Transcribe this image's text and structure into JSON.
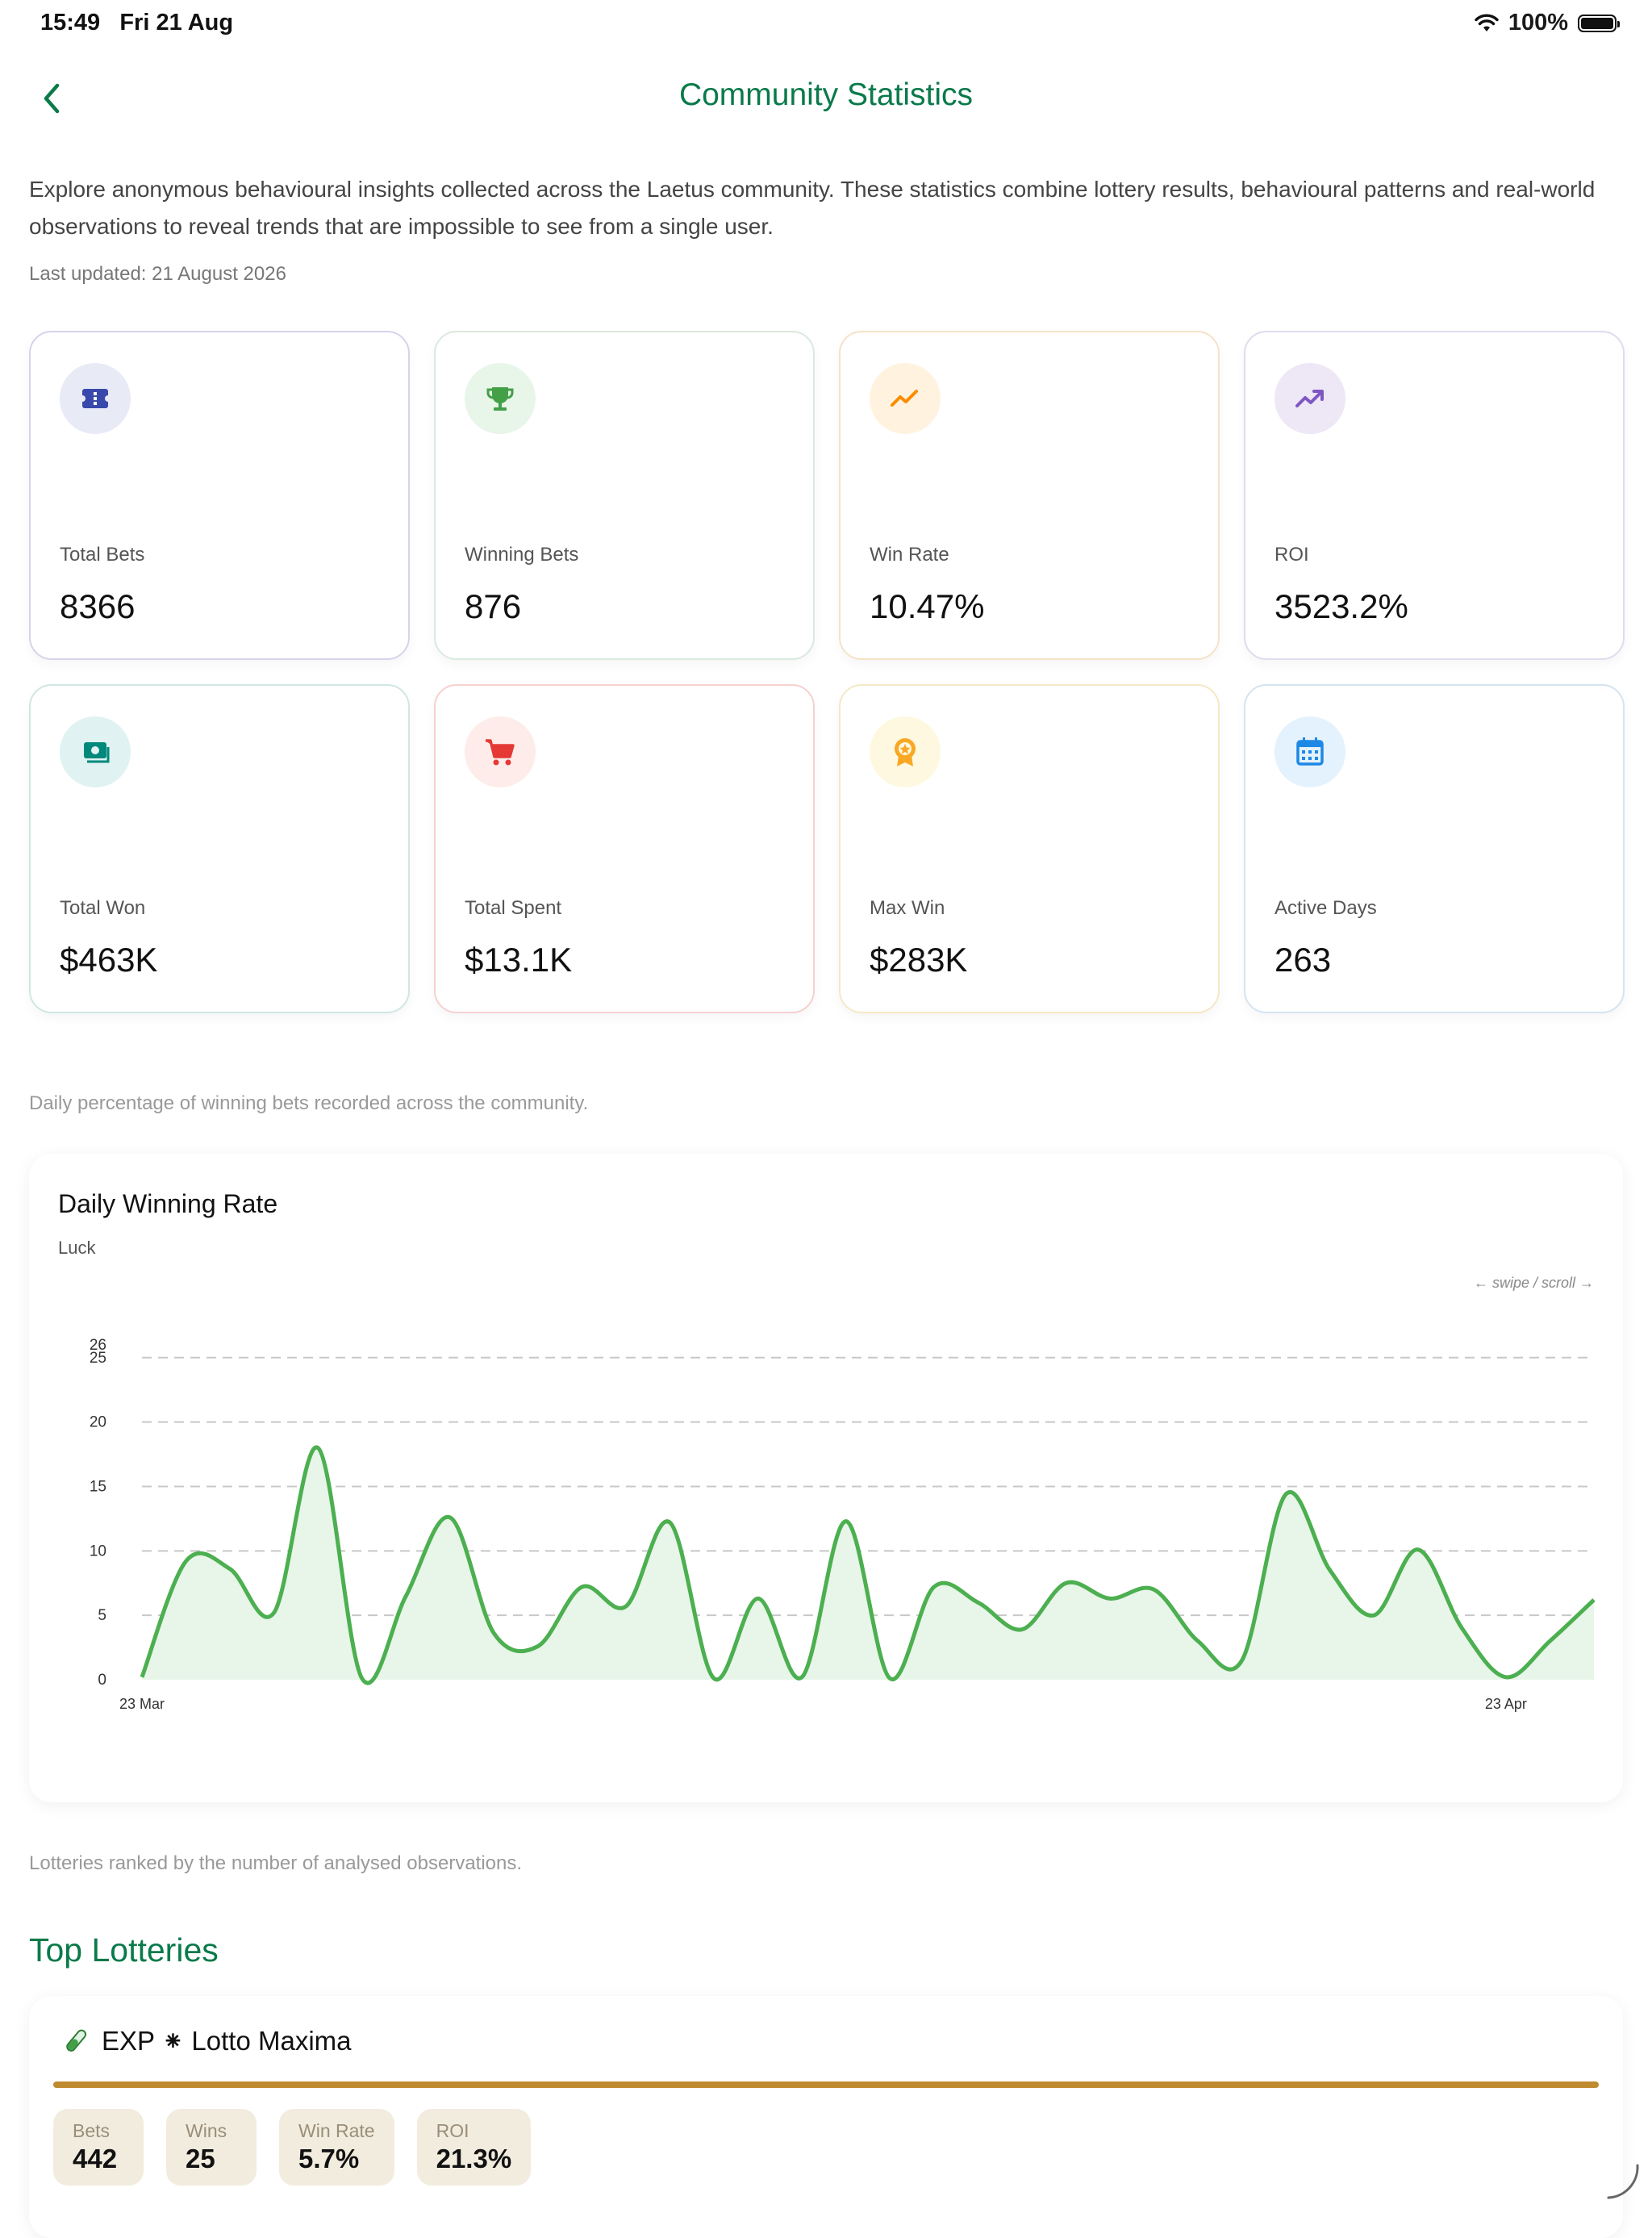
{
  "status": {
    "time": "15:49",
    "date": "Fri 21 Aug",
    "battery": "100%"
  },
  "nav": {
    "title": "Community Statistics"
  },
  "intro": {
    "text": "Explore anonymous behavioural insights collected across the Laetus community. These statistics combine lottery results, behavioural patterns and real-world observations to reveal trends that are impossible to see from a single user.",
    "updated": "Last updated: 21 August 2026"
  },
  "cards": [
    {
      "label": "Total Bets",
      "value": "8366",
      "icon": "ticket-icon",
      "color": "#3949ab",
      "bg": "#e8eaf6",
      "border": "#d6d3ec"
    },
    {
      "label": "Winning Bets",
      "value": "876",
      "icon": "trophy-icon",
      "color": "#43a047",
      "bg": "#e8f5e9",
      "border": "#dbe9df"
    },
    {
      "label": "Win Rate",
      "value": "10.47%",
      "icon": "trend-up-icon",
      "color": "#fb8c00",
      "bg": "#fff3e0",
      "border": "#f6e2c8"
    },
    {
      "label": "ROI",
      "value": "3523.2%",
      "icon": "trend-arrow-icon",
      "color": "#7e57c2",
      "bg": "#ede7f6",
      "border": "#e0dbee"
    },
    {
      "label": "Total Won",
      "value": "$463K",
      "icon": "money-icon",
      "color": "#00897b",
      "bg": "#e0f2f1",
      "border": "#cfe7e4"
    },
    {
      "label": "Total Spent",
      "value": "$13.1K",
      "icon": "cart-icon",
      "color": "#e53935",
      "bg": "#fdecea",
      "border": "#f6d0d0"
    },
    {
      "label": "Max Win",
      "value": "$283K",
      "icon": "award-icon",
      "color": "#f9a825",
      "bg": "#fff8e1",
      "border": "#f6e8c6"
    },
    {
      "label": "Active Days",
      "value": "263",
      "icon": "calendar-icon",
      "color": "#1e88e5",
      "bg": "#e3f2fd",
      "border": "#d4e4f2"
    }
  ],
  "chart_caption": "Daily percentage of winning bets recorded across the community.",
  "chart": {
    "title": "Daily Winning Rate",
    "subtitle": "Luck",
    "hint": "← swipe / scroll →",
    "line_color": "#4caf50",
    "fill_color": "#e8f5e9"
  },
  "chart_data": {
    "type": "area",
    "title": "Daily Winning Rate",
    "ylabel": "Luck",
    "xlabel": "",
    "ylim": [
      0,
      26
    ],
    "y_ticks": [
      0,
      5,
      10,
      15,
      20,
      25,
      26
    ],
    "x_tick_labels": [
      {
        "label": "23 Mar",
        "index": 0
      },
      {
        "label": "23 Apr",
        "index": 31
      }
    ],
    "grid": true,
    "values": [
      0.2,
      9.2,
      8.6,
      5.2,
      18.0,
      0.1,
      6.5,
      12.6,
      3.6,
      2.6,
      7.2,
      5.7,
      12.2,
      0.1,
      6.3,
      0.2,
      12.3,
      0.1,
      7.2,
      6.0,
      3.9,
      7.5,
      6.3,
      7.0,
      3.0,
      1.5,
      14.4,
      8.5,
      5.0,
      10.1,
      4.0,
      0.2,
      3.0,
      6.2
    ]
  },
  "lottery_caption": "Lotteries ranked by the number of analysed observations.",
  "lotteries_title": "Top Lotteries",
  "lottery": {
    "name": "EXP ⁕ Lotto Maxima",
    "icon": "test-tube-icon",
    "accent": "#c08a30",
    "stats": [
      {
        "label": "Bets",
        "value": "442"
      },
      {
        "label": "Wins",
        "value": "25"
      },
      {
        "label": "Win Rate",
        "value": "5.7%"
      },
      {
        "label": "ROI",
        "value": "21.3%"
      }
    ]
  }
}
